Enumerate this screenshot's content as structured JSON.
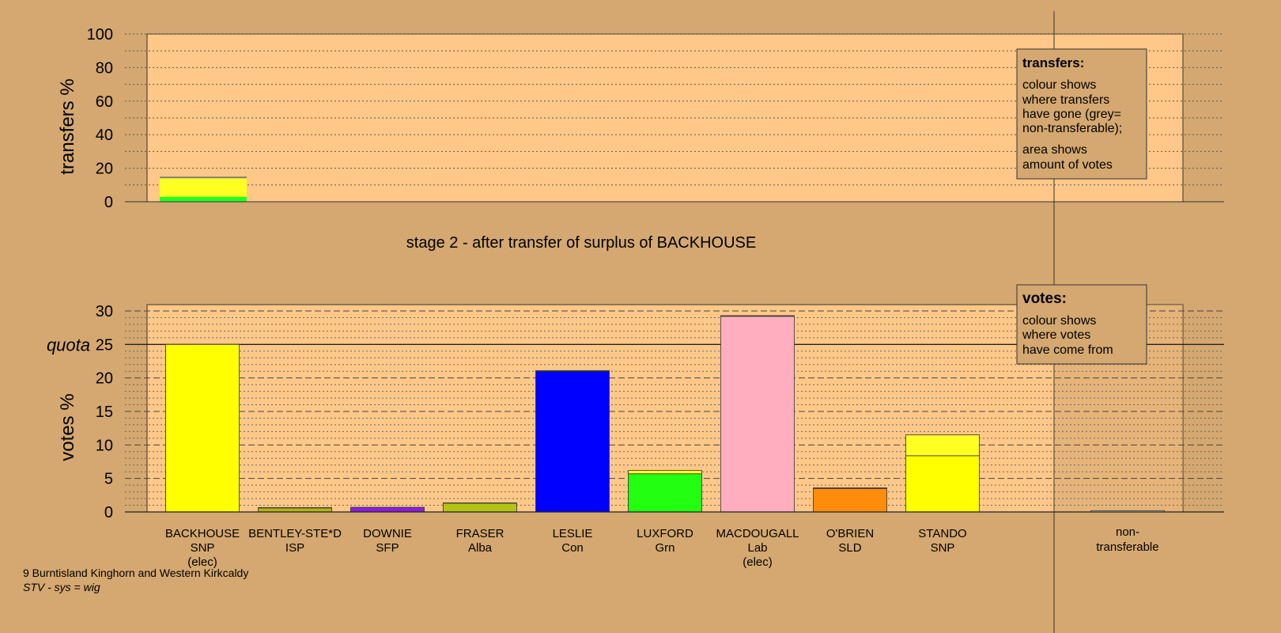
{
  "colors": {
    "page_bg": "#d4a870",
    "panel_bg": "#ffc888",
    "nontransferable_shade": "#c89c68",
    "grey_nontransferable": "#a0a0a0"
  },
  "chart_data": [
    {
      "type": "bar",
      "stacked": true,
      "subtitle": "transfers",
      "ylabel": "transfers %",
      "ylim": [
        0,
        100
      ],
      "yticks": [
        0,
        20,
        40,
        60,
        80,
        100
      ],
      "grid": true,
      "note": "stage 2 - after transfer of surplus of BACKHOUSE",
      "bars": [
        {
          "candidate": "BACKHOUSE",
          "segments": [
            {
              "value": 3,
              "color": "#22ff22"
            },
            {
              "value": 11,
              "color": "#ffff22"
            },
            {
              "value": 0.6,
              "color": "#a0a0a0"
            }
          ]
        }
      ],
      "legend": {
        "title": "transfers:",
        "lines1": [
          "colour shows",
          "where transfers",
          "have gone (grey=",
          "non-transferable);"
        ],
        "lines2": [
          "area shows",
          "amount of votes"
        ]
      }
    },
    {
      "type": "bar",
      "stacked": true,
      "ylabel": "votes %",
      "ylim": [
        0,
        30
      ],
      "yticks": [
        0,
        5,
        10,
        15,
        20,
        25,
        30
      ],
      "quota": 25,
      "quota_label": "quota",
      "grid": true,
      "categories": [
        "BACKHOUSE",
        "BENTLEY-STE*D",
        "DOWNIE",
        "FRASER",
        "LESLIE",
        "LUXFORD",
        "MACDOUGALL",
        "O'BRIEN",
        "STANDO"
      ],
      "parties": [
        "SNP",
        "ISP",
        "SFP",
        "Alba",
        "Con",
        "Grn",
        "Lab",
        "SLD",
        "SNP"
      ],
      "status": [
        "(elec)",
        "",
        "",
        "",
        "",
        "",
        "(elec)",
        "",
        ""
      ],
      "bars": [
        {
          "segments": [
            {
              "value": 25.0,
              "color": "#ffff00"
            }
          ]
        },
        {
          "segments": [
            {
              "value": 0.6,
              "color": "#b4b414"
            },
            {
              "value": 0.05,
              "color": "#ffff00"
            }
          ]
        },
        {
          "segments": [
            {
              "value": 0.7,
              "color": "#8a1ee0"
            }
          ]
        },
        {
          "segments": [
            {
              "value": 1.3,
              "color": "#b4c414"
            },
            {
              "value": 0.05,
              "color": "#ffff00"
            }
          ]
        },
        {
          "segments": [
            {
              "value": 21.0,
              "color": "#0000ff"
            },
            {
              "value": 0.1,
              "color": "#ffff00"
            }
          ]
        },
        {
          "segments": [
            {
              "value": 5.7,
              "color": "#22ff11"
            },
            {
              "value": 0.5,
              "color": "#ffff22"
            }
          ]
        },
        {
          "segments": [
            {
              "value": 29.2,
              "color": "#ffaec0"
            },
            {
              "value": 0.1,
              "color": "#ffff00"
            }
          ]
        },
        {
          "segments": [
            {
              "value": 3.5,
              "color": "#ff8c0a"
            },
            {
              "value": 0.1,
              "color": "#ffff00"
            }
          ]
        },
        {
          "segments": [
            {
              "value": 8.4,
              "color": "#ffff00"
            },
            {
              "value": 3.1,
              "color": "#ffff22"
            }
          ]
        }
      ],
      "nontransferable": {
        "label_line1": "non-",
        "label_line2": "transferable",
        "value": 0.2
      },
      "legend": {
        "title": "votes:",
        "lines": [
          "colour shows",
          "where votes",
          "have come from"
        ]
      }
    }
  ],
  "footer": {
    "line1": "9 Burntisland Kinghorn and Western Kirkcaldy",
    "line2": "STV - sys = wig"
  }
}
